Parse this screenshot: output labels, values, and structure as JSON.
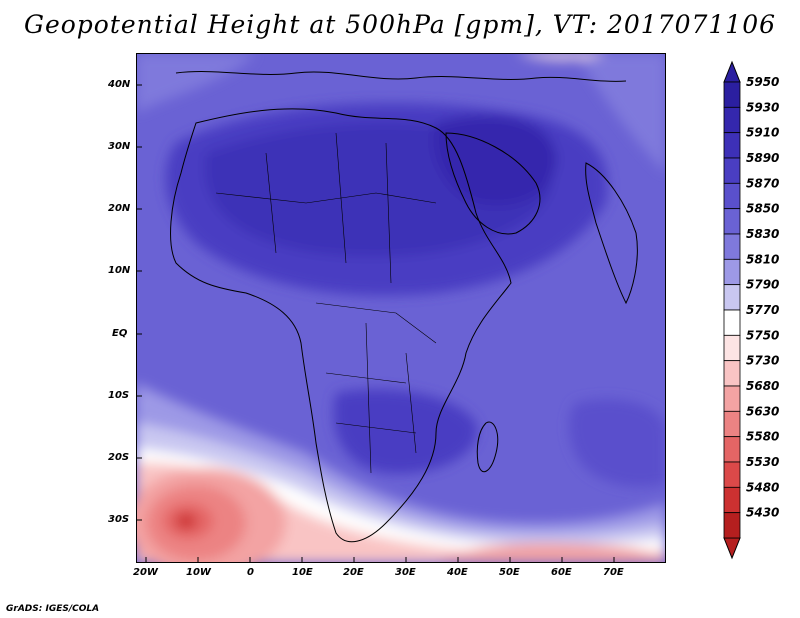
{
  "title": "Geopotential Height at 500hPa [gpm], VT: 2017071106",
  "credit": "GrADS: IGES/COLA",
  "lon_ticks": [
    "20W",
    "10W",
    "0",
    "10E",
    "20E",
    "30E",
    "40E",
    "50E",
    "60E",
    "70E"
  ],
  "lat_ticks": [
    "40N",
    "30N",
    "20N",
    "10N",
    "EQ",
    "10S",
    "20S",
    "30S"
  ],
  "colorbar": {
    "levels": [
      "5950",
      "5930",
      "5910",
      "5890",
      "5870",
      "5850",
      "5830",
      "5810",
      "5790",
      "5770",
      "5750",
      "5730",
      "5680",
      "5630",
      "5580",
      "5530",
      "5480",
      "5430"
    ],
    "colors": [
      "#2b1fa0",
      "#3427ad",
      "#3d30b7",
      "#4a3ec2",
      "#5a50cc",
      "#6a62d4",
      "#7f79dc",
      "#9d99e6",
      "#c9c7f1",
      "#ffffff",
      "#fde4e4",
      "#f9c4c4",
      "#f3a3a3",
      "#ec8383",
      "#e46565",
      "#db4949",
      "#cc3131",
      "#b51f1f"
    ]
  }
}
